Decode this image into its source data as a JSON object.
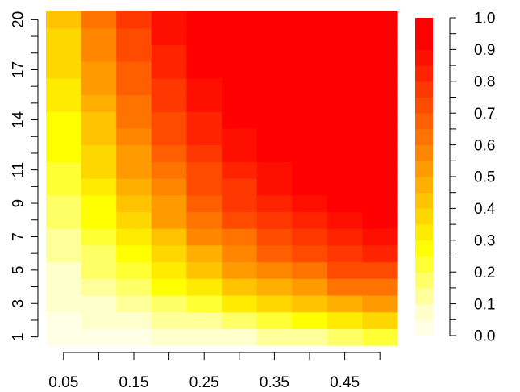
{
  "chart_data": {
    "type": "heatmap",
    "title": "",
    "xlabel": "",
    "ylabel": "",
    "x": [
      0.05,
      0.1,
      0.15,
      0.2,
      0.25,
      0.3,
      0.35,
      0.4,
      0.45,
      0.5
    ],
    "y": [
      1,
      2,
      3,
      4,
      5,
      6,
      7,
      8,
      9,
      10,
      11,
      12,
      13,
      14,
      15,
      16,
      17,
      18,
      19,
      20
    ],
    "x_tick_labels": [
      "0.05",
      "0.15",
      "0.25",
      "0.35",
      "0.45"
    ],
    "x_tick_label_values": [
      0.05,
      0.15,
      0.25,
      0.35,
      0.45
    ],
    "x_tick_marks": [
      0.05,
      0.1,
      0.15,
      0.2,
      0.25,
      0.3,
      0.35,
      0.4,
      0.45,
      0.5
    ],
    "y_tick_labels": [
      "1",
      "3",
      "5",
      "7",
      "9",
      "11",
      "14",
      "17",
      "20"
    ],
    "y_tick_label_values": [
      1,
      3,
      5,
      7,
      9,
      11,
      14,
      17,
      20
    ],
    "colorbar": {
      "range": [
        0,
        1
      ],
      "tick_labels": [
        "0.0",
        "0.1",
        "0.2",
        "0.3",
        "0.4",
        "0.5",
        "0.6",
        "0.7",
        "0.8",
        "0.9",
        "1.0"
      ],
      "tick_values": [
        0,
        0.1,
        0.2,
        0.3,
        0.4,
        0.5,
        0.6,
        0.7,
        0.8,
        0.9,
        1.0
      ],
      "palette": [
        "#FFFFE6",
        "#FFFFCC",
        "#FFFF99",
        "#FFFF66",
        "#FFFF33",
        "#FFFF00",
        "#FFEB00",
        "#FFD700",
        "#FFC300",
        "#FFAF00",
        "#FF9B00",
        "#FF8700",
        "#FF7300",
        "#FF5F00",
        "#FF4B00",
        "#FF3700",
        "#FF2300",
        "#FF0F00",
        "#FF0000",
        "#FF0000"
      ]
    },
    "values": [
      [
        0.01,
        0.03,
        0.04,
        0.05,
        0.06,
        0.09,
        0.12,
        0.14,
        0.18,
        0.2
      ],
      [
        0.03,
        0.06,
        0.09,
        0.12,
        0.14,
        0.18,
        0.22,
        0.28,
        0.32,
        0.36
      ],
      [
        0.05,
        0.08,
        0.13,
        0.18,
        0.24,
        0.3,
        0.36,
        0.42,
        0.46,
        0.5
      ],
      [
        0.07,
        0.12,
        0.18,
        0.25,
        0.33,
        0.41,
        0.48,
        0.54,
        0.6,
        0.64
      ],
      [
        0.09,
        0.15,
        0.23,
        0.32,
        0.42,
        0.5,
        0.58,
        0.64,
        0.7,
        0.74
      ],
      [
        0.11,
        0.19,
        0.28,
        0.38,
        0.49,
        0.58,
        0.66,
        0.72,
        0.77,
        0.81
      ],
      [
        0.13,
        0.22,
        0.33,
        0.44,
        0.55,
        0.64,
        0.72,
        0.78,
        0.83,
        0.86
      ],
      [
        0.15,
        0.25,
        0.38,
        0.5,
        0.61,
        0.7,
        0.78,
        0.83,
        0.87,
        0.9
      ],
      [
        0.18,
        0.28,
        0.42,
        0.54,
        0.66,
        0.75,
        0.82,
        0.87,
        0.9,
        0.93
      ],
      [
        0.2,
        0.31,
        0.46,
        0.59,
        0.7,
        0.79,
        0.86,
        0.9,
        0.93,
        0.95
      ],
      [
        0.23,
        0.35,
        0.5,
        0.63,
        0.74,
        0.83,
        0.89,
        0.92,
        0.95,
        0.97
      ],
      [
        0.25,
        0.38,
        0.53,
        0.66,
        0.78,
        0.86,
        0.91,
        0.94,
        0.96,
        0.98
      ],
      [
        0.27,
        0.41,
        0.56,
        0.7,
        0.81,
        0.88,
        0.93,
        0.96,
        0.97,
        0.98
      ],
      [
        0.29,
        0.44,
        0.6,
        0.73,
        0.84,
        0.91,
        0.95,
        0.97,
        0.98,
        0.99
      ],
      [
        0.31,
        0.47,
        0.63,
        0.76,
        0.86,
        0.93,
        0.96,
        0.98,
        0.99,
        0.99
      ],
      [
        0.33,
        0.5,
        0.66,
        0.79,
        0.88,
        0.94,
        0.97,
        0.99,
        0.99,
        1.0
      ],
      [
        0.35,
        0.53,
        0.69,
        0.81,
        0.9,
        0.95,
        0.98,
        0.99,
        1.0,
        1.0
      ],
      [
        0.37,
        0.56,
        0.72,
        0.84,
        0.92,
        0.96,
        0.99,
        0.99,
        1.0,
        1.0
      ],
      [
        0.39,
        0.58,
        0.74,
        0.86,
        0.93,
        0.97,
        0.99,
        1.0,
        1.0,
        1.0
      ],
      [
        0.41,
        0.61,
        0.77,
        0.88,
        0.95,
        0.98,
        1.0,
        1.0,
        1.0,
        1.0
      ]
    ]
  }
}
